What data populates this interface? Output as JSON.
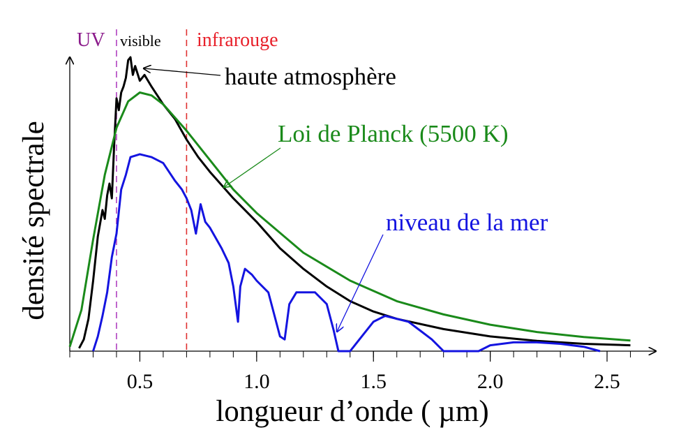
{
  "chart_data": {
    "type": "line",
    "title": "",
    "xlabel": "longueur d’onde ( µm)",
    "ylabel": "densité spectrale",
    "xlim": [
      0.2,
      2.7
    ],
    "ylim": [
      0,
      1.0
    ],
    "x_ticks": [
      0.5,
      1.0,
      1.5,
      2.0,
      2.5
    ],
    "x_tick_labels": [
      "0.5",
      "1.0",
      "1.5",
      "2.0",
      "2.5"
    ],
    "grid": false,
    "y_tick_labels": false,
    "regions": [
      {
        "label": "UV",
        "color": "#8b1a8b"
      },
      {
        "label": "visible",
        "color": "#000000"
      },
      {
        "label": "infrarouge",
        "color": "#e8202a"
      }
    ],
    "boundaries": [
      {
        "x": 0.4,
        "color": "#b040c0"
      },
      {
        "x": 0.7,
        "color": "#e03030"
      }
    ],
    "series": [
      {
        "name": "haute atmosphère",
        "color": "#000000",
        "x": [
          0.24,
          0.26,
          0.28,
          0.3,
          0.32,
          0.34,
          0.35,
          0.36,
          0.37,
          0.38,
          0.39,
          0.4,
          0.41,
          0.42,
          0.43,
          0.44,
          0.45,
          0.46,
          0.47,
          0.48,
          0.5,
          0.52,
          0.55,
          0.6,
          0.65,
          0.7,
          0.75,
          0.8,
          0.9,
          1.0,
          1.1,
          1.2,
          1.3,
          1.4,
          1.5,
          1.6,
          1.8,
          2.0,
          2.2,
          2.4,
          2.6
        ],
        "y": [
          0.01,
          0.04,
          0.11,
          0.24,
          0.39,
          0.48,
          0.45,
          0.53,
          0.57,
          0.52,
          0.7,
          0.86,
          0.82,
          0.88,
          0.9,
          0.93,
          0.99,
          1.0,
          0.94,
          0.97,
          0.92,
          0.94,
          0.9,
          0.84,
          0.79,
          0.72,
          0.66,
          0.61,
          0.52,
          0.44,
          0.35,
          0.28,
          0.22,
          0.17,
          0.135,
          0.11,
          0.075,
          0.05,
          0.035,
          0.025,
          0.02
        ]
      },
      {
        "name": "Loi de Planck (5500 K)",
        "color": "#1a8a1a",
        "x": [
          0.2,
          0.25,
          0.3,
          0.35,
          0.4,
          0.45,
          0.5,
          0.55,
          0.6,
          0.7,
          0.8,
          0.9,
          1.0,
          1.2,
          1.4,
          1.6,
          1.8,
          2.0,
          2.2,
          2.4,
          2.6
        ],
        "y": [
          0.015,
          0.14,
          0.38,
          0.6,
          0.76,
          0.85,
          0.88,
          0.87,
          0.84,
          0.75,
          0.65,
          0.55,
          0.47,
          0.335,
          0.24,
          0.17,
          0.125,
          0.09,
          0.065,
          0.048,
          0.036
        ]
      },
      {
        "name": "niveau de la mer",
        "color": "#1414e0",
        "x": [
          0.3,
          0.32,
          0.34,
          0.36,
          0.38,
          0.4,
          0.42,
          0.44,
          0.46,
          0.5,
          0.55,
          0.6,
          0.65,
          0.68,
          0.7,
          0.72,
          0.74,
          0.76,
          0.78,
          0.8,
          0.85,
          0.88,
          0.9,
          0.92,
          0.93,
          0.95,
          0.98,
          1.0,
          1.05,
          1.1,
          1.12,
          1.14,
          1.17,
          1.2,
          1.25,
          1.3,
          1.33,
          1.35,
          1.4,
          1.45,
          1.5,
          1.55,
          1.6,
          1.65,
          1.7,
          1.75,
          1.8,
          1.95,
          2.0,
          2.1,
          2.2,
          2.3,
          2.4,
          2.47
        ],
        "y": [
          0.0,
          0.05,
          0.12,
          0.2,
          0.32,
          0.4,
          0.55,
          0.6,
          0.66,
          0.67,
          0.66,
          0.64,
          0.58,
          0.55,
          0.52,
          0.48,
          0.4,
          0.5,
          0.44,
          0.42,
          0.35,
          0.3,
          0.22,
          0.1,
          0.22,
          0.28,
          0.26,
          0.24,
          0.2,
          0.05,
          0.04,
          0.16,
          0.2,
          0.2,
          0.2,
          0.16,
          0.07,
          0.0,
          0.0,
          0.05,
          0.1,
          0.12,
          0.11,
          0.1,
          0.07,
          0.04,
          0.0,
          0.0,
          0.02,
          0.03,
          0.03,
          0.025,
          0.015,
          0.0
        ]
      }
    ],
    "annotations": [
      {
        "text": "haute atmosphère",
        "color": "#000000"
      },
      {
        "text": "Loi de Planck (5500 K)",
        "color": "#1a8a1a"
      },
      {
        "text": "niveau de la mer",
        "color": "#1414e0"
      }
    ]
  }
}
